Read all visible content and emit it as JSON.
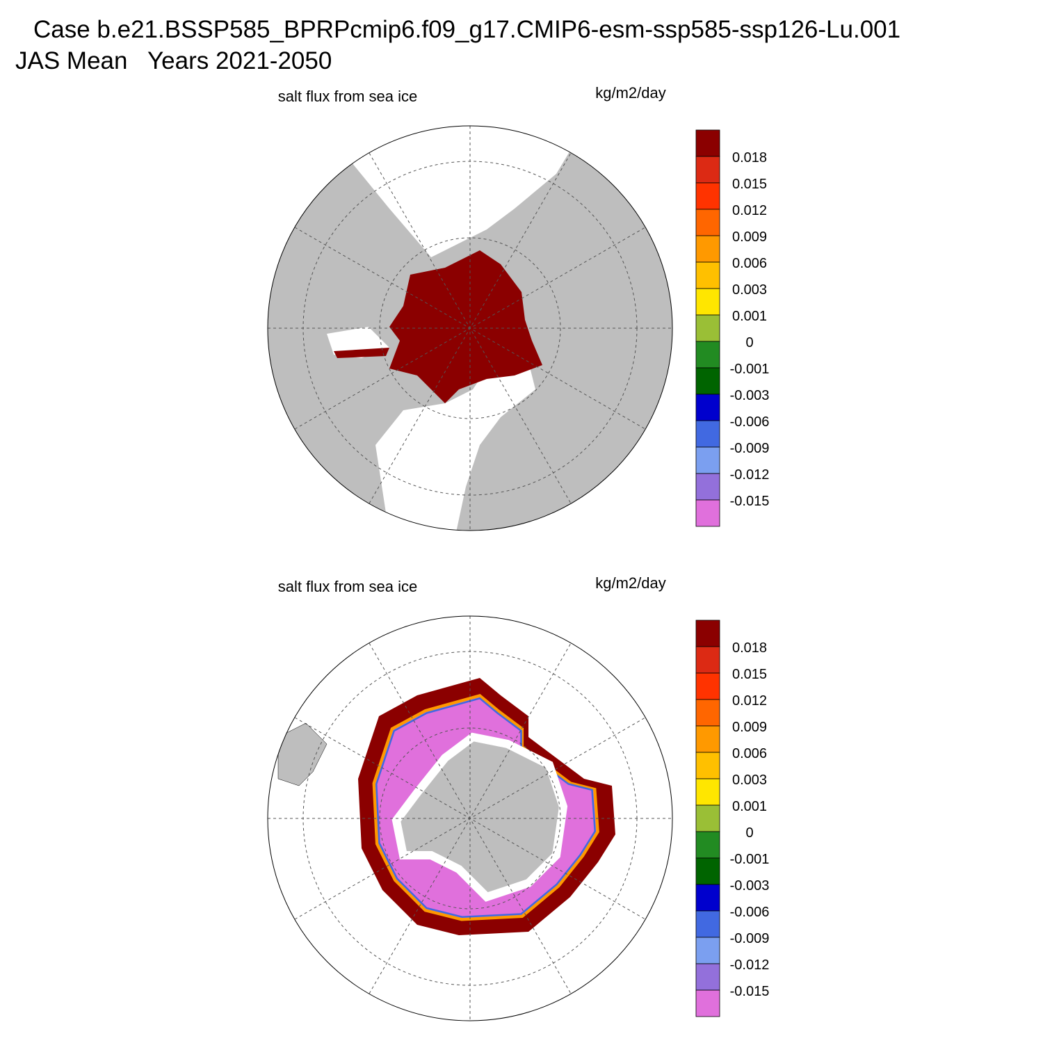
{
  "header": {
    "line1": "Case b.e21.BSSP585_BPRPcmip6.f09_g17.CMIP6-esm-ssp585-ssp126-Lu.001",
    "line2": "JAS Mean   Years 2021-2050"
  },
  "colorbar": {
    "colors": [
      "#8b0000",
      "#dc2a14",
      "#ff3300",
      "#ff6600",
      "#ff9900",
      "#ffc000",
      "#ffe600",
      "#9abf36",
      "#228b22",
      "#006400",
      "#0000cd",
      "#4169e1",
      "#7b9ff0",
      "#9370db",
      "#e070dc"
    ]
  },
  "panels": [
    {
      "title": "salt flux from sea ice",
      "units": "kg/m2/day",
      "colorbar_labels": [
        "0.018",
        "0.015",
        "0.012",
        "0.009",
        "0.006",
        "0.003",
        "0.001",
        "0",
        "-0.001",
        "-0.003",
        "-0.006",
        "-0.009",
        "-0.012",
        "-0.015"
      ]
    },
    {
      "title": "salt flux from sea ice",
      "units": "kg/m2/day",
      "colorbar_labels": [
        "0.018",
        "0.015",
        "0.012",
        "0.009",
        "0.006",
        "0.003",
        "0.001",
        "0",
        "-0.001",
        "-0.003",
        "-0.006",
        "-0.009",
        "-0.012",
        "-0.015"
      ]
    }
  ]
}
